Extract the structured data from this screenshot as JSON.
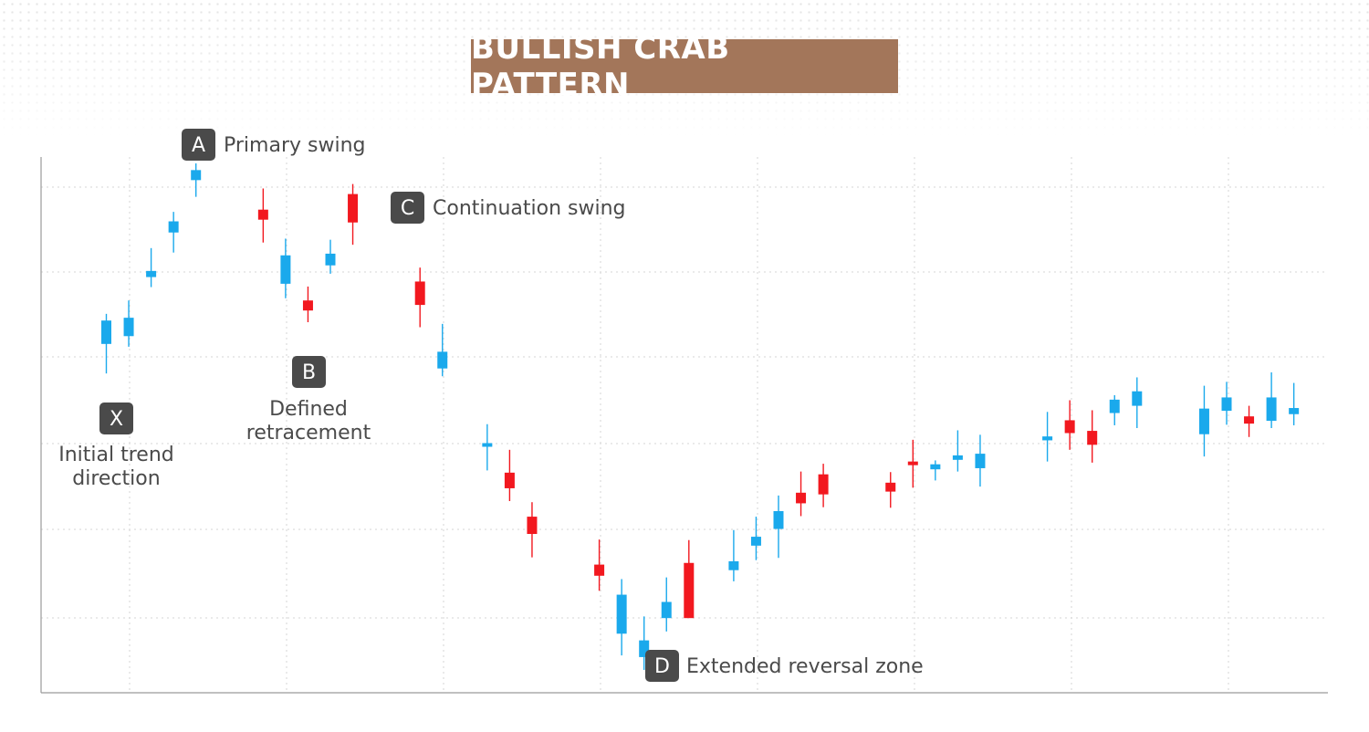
{
  "title": "BULLISH CRAB PATTERN",
  "colors": {
    "title_bg": "#a3765a",
    "bullish": "#1aa9ec",
    "bearish": "#f2181f",
    "label_bg": "#4a4a4a",
    "grid": "#dddddd",
    "axis": "#9a9a9a"
  },
  "labels": {
    "X": {
      "letter": "X",
      "lines": [
        "Initial trend",
        "direction"
      ]
    },
    "A": {
      "letter": "A",
      "lines": [
        "Primary swing"
      ]
    },
    "B": {
      "letter": "B",
      "lines": [
        "Defined",
        "retracement"
      ]
    },
    "C": {
      "letter": "C",
      "lines": [
        "Continuation swing"
      ]
    },
    "D": {
      "letter": "D",
      "lines": [
        "Extended reversal zone"
      ]
    }
  },
  "chart_data": {
    "type": "candlestick",
    "title": "BULLISH CRAB PATTERN",
    "grid": true,
    "ylim": [
      0,
      100
    ],
    "xlim": [
      0,
      57
    ],
    "candles": [
      {
        "i": 3,
        "o": 62.6,
        "h": 68.0,
        "l": 57.3,
        "c": 66.8
      },
      {
        "i": 4,
        "o": 64.0,
        "h": 70.4,
        "l": 62.1,
        "c": 67.3
      },
      {
        "i": 5,
        "o": 74.6,
        "h": 79.8,
        "l": 72.8,
        "c": 75.7
      },
      {
        "i": 6,
        "o": 82.6,
        "h": 86.3,
        "l": 79.0,
        "c": 84.6
      },
      {
        "i": 7,
        "o": 92.0,
        "h": 95.0,
        "l": 89.0,
        "c": 93.8
      },
      {
        "i": 10,
        "o": 86.7,
        "h": 90.5,
        "l": 80.8,
        "c": 84.9
      },
      {
        "i": 11,
        "o": 73.4,
        "h": 81.5,
        "l": 70.8,
        "c": 78.5
      },
      {
        "i": 12,
        "o": 70.4,
        "h": 72.9,
        "l": 66.5,
        "c": 68.6
      },
      {
        "i": 13,
        "o": 76.7,
        "h": 81.3,
        "l": 75.2,
        "c": 78.8
      },
      {
        "i": 14,
        "o": 89.5,
        "h": 91.3,
        "l": 80.4,
        "c": 84.4
      },
      {
        "i": 17,
        "o": 73.8,
        "h": 76.3,
        "l": 65.6,
        "c": 69.6
      },
      {
        "i": 18,
        "o": 58.2,
        "h": 66.2,
        "l": 56.8,
        "c": 61.2
      },
      {
        "i": 20,
        "o": 44.3,
        "h": 48.2,
        "l": 39.9,
        "c": 44.8
      },
      {
        "i": 21,
        "o": 39.5,
        "h": 43.6,
        "l": 34.4,
        "c": 36.7
      },
      {
        "i": 22,
        "o": 31.6,
        "h": 34.2,
        "l": 24.3,
        "c": 28.5
      },
      {
        "i": 25,
        "o": 23.0,
        "h": 27.5,
        "l": 18.3,
        "c": 21.0
      },
      {
        "i": 26,
        "o": 10.6,
        "h": 20.4,
        "l": 6.7,
        "c": 17.6
      },
      {
        "i": 27,
        "o": 6.4,
        "h": 13.7,
        "l": 4.1,
        "c": 9.4
      },
      {
        "i": 28,
        "o": 13.4,
        "h": 20.7,
        "l": 11.0,
        "c": 16.3
      },
      {
        "i": 29,
        "o": 23.3,
        "h": 27.4,
        "l": 13.8,
        "c": 13.4
      },
      {
        "i": 31,
        "o": 22.0,
        "h": 29.2,
        "l": 20.0,
        "c": 23.6
      },
      {
        "i": 32,
        "o": 26.4,
        "h": 31.6,
        "l": 23.8,
        "c": 28.0
      },
      {
        "i": 33,
        "o": 29.4,
        "h": 35.4,
        "l": 24.2,
        "c": 32.6
      },
      {
        "i": 34,
        "o": 35.9,
        "h": 39.7,
        "l": 31.7,
        "c": 34.0
      },
      {
        "i": 35,
        "o": 39.2,
        "h": 41.1,
        "l": 33.3,
        "c": 35.6
      },
      {
        "i": 38,
        "o": 37.7,
        "h": 39.6,
        "l": 33.2,
        "c": 36.1
      },
      {
        "i": 39,
        "o": 41.5,
        "h": 45.4,
        "l": 36.8,
        "c": 40.9
      },
      {
        "i": 40,
        "o": 40.1,
        "h": 41.7,
        "l": 38.1,
        "c": 41.0
      },
      {
        "i": 41,
        "o": 41.8,
        "h": 47.1,
        "l": 39.7,
        "c": 42.6
      },
      {
        "i": 42,
        "o": 40.3,
        "h": 46.3,
        "l": 37.0,
        "c": 42.9
      },
      {
        "i": 45,
        "o": 45.3,
        "h": 50.4,
        "l": 41.5,
        "c": 46.0
      },
      {
        "i": 46,
        "o": 48.9,
        "h": 52.5,
        "l": 43.6,
        "c": 46.6
      },
      {
        "i": 47,
        "o": 47.0,
        "h": 50.7,
        "l": 41.3,
        "c": 44.5
      },
      {
        "i": 48,
        "o": 50.2,
        "h": 53.4,
        "l": 48.0,
        "c": 52.6
      },
      {
        "i": 49,
        "o": 51.5,
        "h": 56.6,
        "l": 47.5,
        "c": 54.1
      },
      {
        "i": 52,
        "o": 46.4,
        "h": 55.1,
        "l": 42.4,
        "c": 51.0
      },
      {
        "i": 53,
        "o": 50.6,
        "h": 55.8,
        "l": 48.1,
        "c": 53.0
      },
      {
        "i": 54,
        "o": 49.6,
        "h": 51.5,
        "l": 45.9,
        "c": 48.3
      },
      {
        "i": 55,
        "o": 48.8,
        "h": 57.5,
        "l": 47.5,
        "c": 53.0
      },
      {
        "i": 56,
        "o": 50.0,
        "h": 55.6,
        "l": 48.0,
        "c": 51.1
      }
    ]
  }
}
